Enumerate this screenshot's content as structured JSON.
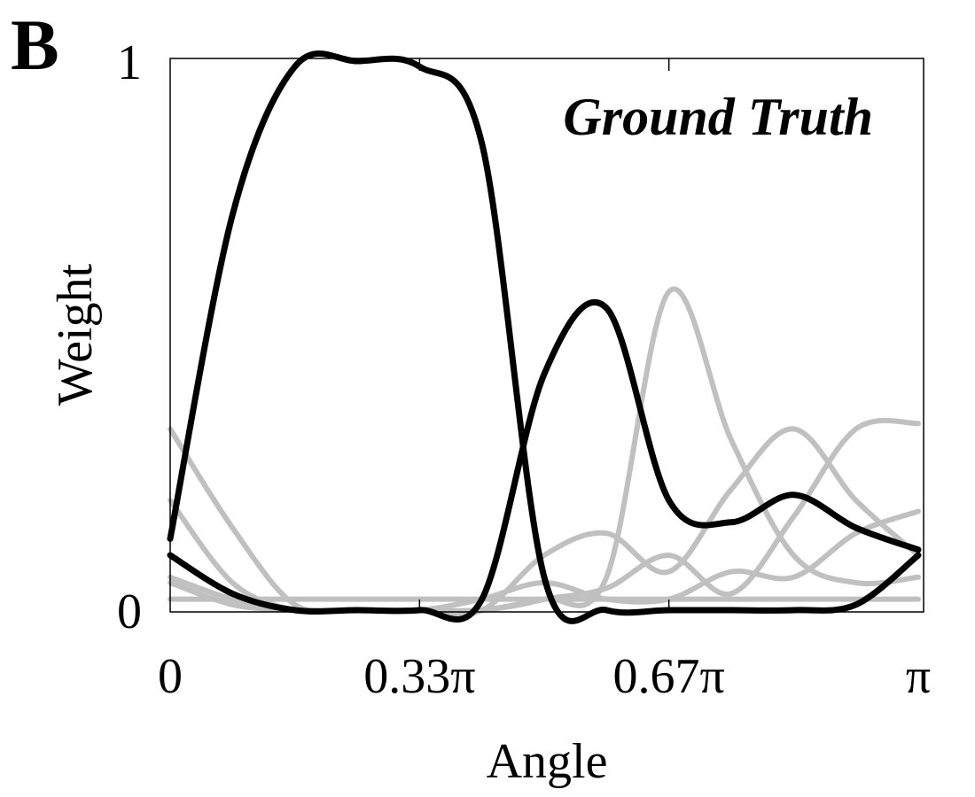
{
  "panel_label": "B",
  "chart_data": {
    "type": "line",
    "title": "Ground Truth",
    "xlabel": "Angle",
    "ylabel": "Weight",
    "xlim": [
      0,
      3.14159
    ],
    "ylim": [
      0,
      1
    ],
    "x_ticks": [
      {
        "value": 0,
        "label": "0"
      },
      {
        "value": 1.0472,
        "label": "0.33π"
      },
      {
        "value": 2.0944,
        "label": "0.67π"
      },
      {
        "value": 3.14159,
        "label": "π"
      }
    ],
    "y_ticks": [
      {
        "value": 0,
        "label": "0"
      },
      {
        "value": 1,
        "label": "1"
      }
    ],
    "grid": false,
    "x": [
      0,
      0.2618,
      0.5236,
      0.7854,
      1.0472,
      1.309,
      1.5708,
      1.8326,
      2.0944,
      2.3562,
      2.618,
      2.8798,
      3.14159
    ],
    "series": [
      {
        "color": "#000000",
        "emphasis": "highlighted",
        "values": [
          0.13,
          0.72,
          0.99,
          1.0,
          0.99,
          0.85,
          0.06,
          0.0,
          0.0,
          0.0,
          0.0,
          0.01,
          0.1
        ]
      },
      {
        "color": "#000000",
        "emphasis": "highlighted",
        "values": [
          0.1,
          0.03,
          0.0,
          0.0,
          0.0,
          0.02,
          0.43,
          0.55,
          0.2,
          0.16,
          0.21,
          0.15,
          0.11
        ]
      },
      {
        "color": "#c0c0c0",
        "emphasis": "background",
        "values": [
          0.33,
          0.15,
          0.01,
          0.0,
          0.0,
          0.0,
          0.02,
          0.06,
          0.58,
          0.31,
          0.1,
          0.05,
          0.06
        ]
      },
      {
        "color": "#c0c0c0",
        "emphasis": "background",
        "values": [
          0.2,
          0.05,
          0.0,
          0.0,
          0.0,
          0.0,
          0.1,
          0.14,
          0.07,
          0.22,
          0.33,
          0.2,
          0.1
        ]
      },
      {
        "color": "#c0c0c0",
        "emphasis": "background",
        "values": [
          0.06,
          0.02,
          0.0,
          0.0,
          0.0,
          0.0,
          0.02,
          0.04,
          0.1,
          0.03,
          0.17,
          0.33,
          0.34
        ]
      },
      {
        "color": "#c0c0c0",
        "emphasis": "background",
        "values": [
          0.05,
          0.01,
          0.0,
          0.0,
          0.0,
          0.02,
          0.05,
          0.02,
          0.02,
          0.07,
          0.06,
          0.14,
          0.18
        ]
      },
      {
        "color": "#c0c0c0",
        "emphasis": "background",
        "values": [
          0.02,
          0.02,
          0.02,
          0.02,
          0.02,
          0.02,
          0.02,
          0.02,
          0.02,
          0.02,
          0.02,
          0.02,
          0.02
        ]
      }
    ]
  }
}
